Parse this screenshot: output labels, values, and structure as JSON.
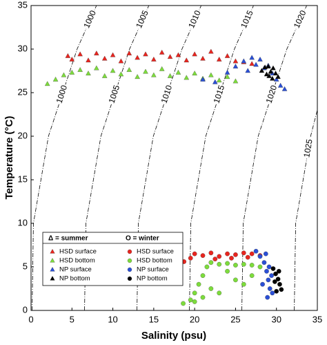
{
  "chart_data": {
    "type": "scatter",
    "x_label": "Salinity (psu)",
    "y_label": "Temperature (°C)",
    "xlim": [
      0,
      35
    ],
    "ylim": [
      0,
      35
    ],
    "xticks": [
      0,
      5,
      10,
      15,
      20,
      25,
      30,
      35
    ],
    "yticks": [
      0,
      5,
      10,
      15,
      20,
      25,
      30,
      35
    ],
    "legend_titles": [
      "Δ = summer",
      "O = winter"
    ],
    "contours": [
      {
        "density": 1000,
        "salinity": [
          0.13,
          0.29,
          2.13,
          5.63,
          8.0
        ],
        "temperature": [
          0,
          10,
          20,
          30,
          35
        ]
      },
      {
        "density": 1005,
        "salinity": [
          6.54,
          6.71,
          8.54,
          12.04,
          14.4
        ],
        "temperature": [
          0,
          10,
          20,
          30,
          35
        ]
      },
      {
        "density": 1010,
        "salinity": [
          12.95,
          13.12,
          14.95,
          18.45,
          20.8
        ],
        "temperature": [
          0,
          10,
          20,
          30,
          35
        ]
      },
      {
        "density": 1015,
        "salinity": [
          19.36,
          19.53,
          21.36,
          24.86,
          27.2
        ],
        "temperature": [
          0,
          10,
          20,
          30,
          35
        ]
      },
      {
        "density": 1020,
        "salinity": [
          25.77,
          25.94,
          27.77,
          31.27,
          33.7
        ],
        "temperature": [
          0,
          10,
          20,
          30,
          35
        ]
      },
      {
        "density": 1025,
        "salinity": [
          32.18,
          32.35,
          34.18,
          35
        ],
        "temperature": [
          0,
          10,
          20,
          23
        ]
      }
    ],
    "series": [
      {
        "name": "HSD surface",
        "color": "#e8251f",
        "marker": "triangle",
        "x": [
          4.5,
          5,
          6,
          7,
          8,
          9,
          10,
          11,
          12,
          13,
          14,
          15,
          16,
          17,
          18,
          19,
          20,
          21,
          22,
          23,
          24,
          25,
          26,
          27
        ],
        "values": [
          29.2,
          28.8,
          29.4,
          28.7,
          29.5,
          28.9,
          29.3,
          28.6,
          29.5,
          29.0,
          29.4,
          28.8,
          29.6,
          29.1,
          29.3,
          28.7,
          29.4,
          28.9,
          29.7,
          28.8,
          29.2,
          28.6,
          28.5,
          28.3
        ]
      },
      {
        "name": "HSD bottom",
        "color": "#7ddc3c",
        "marker": "triangle",
        "x": [
          2,
          3,
          4,
          5,
          6,
          7,
          8,
          9,
          10,
          11,
          12,
          13,
          14,
          15,
          16,
          17,
          18,
          19,
          20,
          21,
          22,
          23,
          24,
          25
        ],
        "values": [
          26.0,
          26.5,
          27.0,
          27.3,
          27.6,
          27.2,
          27.8,
          26.9,
          27.5,
          27.1,
          27.6,
          26.8,
          27.4,
          27.0,
          27.7,
          26.9,
          27.3,
          26.7,
          27.2,
          26.6,
          27.0,
          26.4,
          26.8,
          26.3
        ]
      },
      {
        "name": "NP surface",
        "color": "#2a4fd6",
        "marker": "triangle",
        "x": [
          21,
          22.5,
          24,
          25,
          26,
          26.5,
          27,
          27.5,
          28,
          28.5,
          29,
          29.5,
          30,
          30.5,
          31
        ],
        "values": [
          26.5,
          26.2,
          27.3,
          28.0,
          28.6,
          27.5,
          29.0,
          28.2,
          28.8,
          27.8,
          28.1,
          27.2,
          26.5,
          25.8,
          25.4
        ]
      },
      {
        "name": "NP bottom",
        "color": "#000000",
        "marker": "triangle",
        "x": [
          28.2,
          28.6,
          29,
          29.3,
          29.6,
          29.9,
          30.2,
          29.1,
          28.8,
          29.5
        ],
        "values": [
          27.5,
          27.9,
          28.0,
          27.4,
          27.8,
          27.2,
          26.8,
          26.9,
          27.1,
          26.6
        ]
      },
      {
        "name": "HSD surface",
        "color": "#e8251f",
        "marker": "circle",
        "x": [
          18.7,
          19.5,
          20,
          21,
          22,
          23,
          24,
          25,
          26,
          27,
          28,
          22.5,
          24.5,
          26.5
        ],
        "values": [
          5.6,
          6.0,
          6.5,
          6.3,
          6.6,
          6.2,
          6.5,
          6.4,
          6.6,
          6.5,
          6.3,
          5.9,
          6.0,
          6.1
        ]
      },
      {
        "name": "HSD bottom",
        "color": "#7ddc3c",
        "marker": "circle",
        "x": [
          18.6,
          19.5,
          20,
          20.5,
          21,
          21.5,
          22,
          23,
          24,
          25,
          26,
          27,
          28,
          21,
          22,
          24,
          26,
          20,
          23,
          25,
          27
        ],
        "values": [
          0.8,
          1.2,
          2.0,
          3.0,
          4.0,
          5.0,
          5.5,
          5.3,
          5.4,
          5.2,
          5.3,
          5.2,
          5.0,
          1.5,
          2.5,
          4.5,
          3.0,
          1.0,
          2.0,
          3.5,
          4.0
        ]
      },
      {
        "name": "NP surface",
        "color": "#2a4fd6",
        "marker": "circle",
        "x": [
          27.5,
          28,
          28.5,
          28.8,
          29,
          29.2,
          29.5,
          28.3,
          28.7,
          29.1,
          28.9,
          29.4
        ],
        "values": [
          6.8,
          6.2,
          5.5,
          4.5,
          3.5,
          2.5,
          2.0,
          3.0,
          6.5,
          5.0,
          1.5,
          4.0
        ]
      },
      {
        "name": "NP bottom",
        "color": "#000000",
        "marker": "circle",
        "x": [
          29.6,
          29.9,
          30.2,
          30.4,
          30.6,
          30.0,
          30.3,
          29.8
        ],
        "values": [
          4.8,
          4.2,
          3.6,
          3.0,
          2.4,
          2.2,
          4.5,
          3.3
        ]
      }
    ]
  }
}
